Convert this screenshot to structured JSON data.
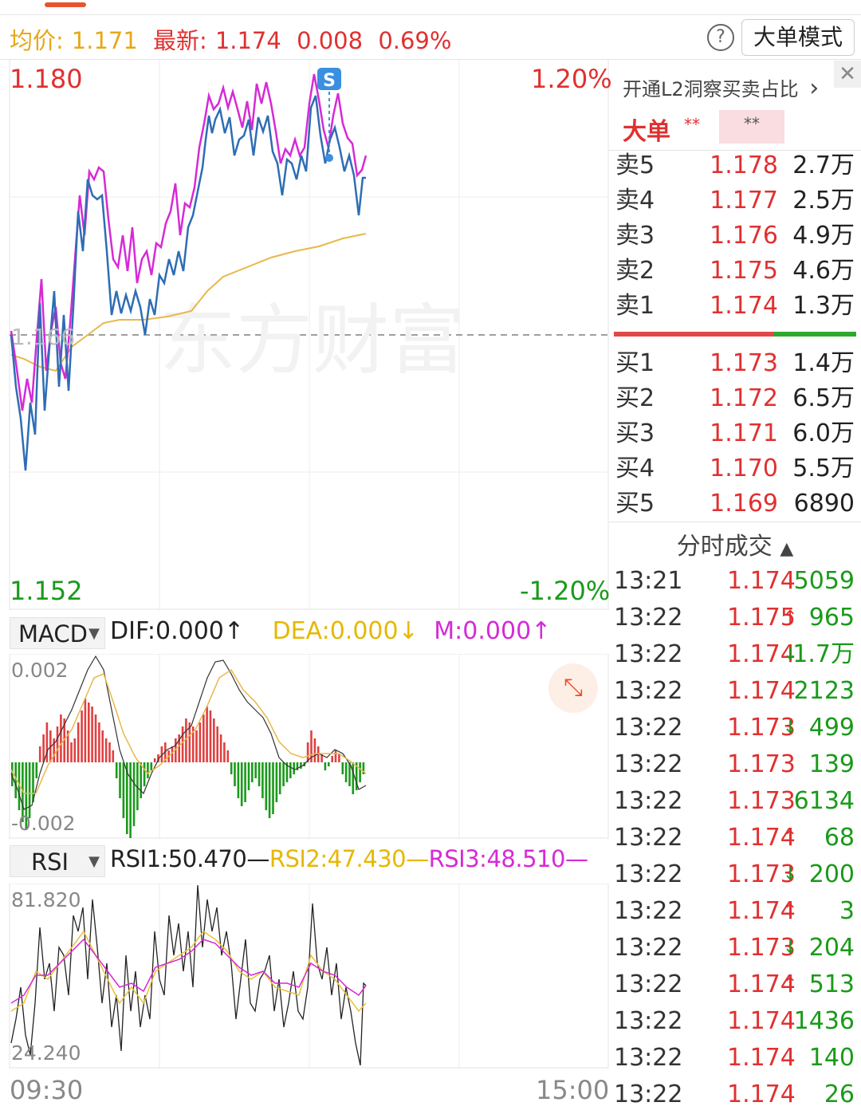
{
  "header": {
    "avg_label": "均价:",
    "avg_value": "1.171",
    "latest_label": "最新:",
    "latest_value": "1.174",
    "change": "0.008",
    "change_pct": "0.69%",
    "help_icon": "question-circle-icon",
    "mode_button": "大单模式"
  },
  "chart": {
    "price_high": "1.180",
    "price_low": "1.152",
    "pct_high": "1.20%",
    "pct_low": "-1.20%",
    "ref_price": "1.166",
    "watermark": "东方财富",
    "signal_badge": "S",
    "time_start": "09:30",
    "time_end": "15:00",
    "colors": {
      "price": "#2e6db4",
      "price2": "#d62ad6",
      "avg": "#e8b84a",
      "up": "#e03030",
      "down": "#1a9a1a"
    }
  },
  "macd": {
    "selector": "MACD",
    "dif": "DIF:0.000",
    "dif_arrow": "↑",
    "dea": "DEA:0.000",
    "dea_arrow": "↓",
    "m": "M:0.000",
    "m_arrow": "↑",
    "axis_top": "0.002",
    "axis_bottom": "-0.002",
    "expand_icon": "expand-arrows-icon"
  },
  "rsi": {
    "selector": "RSI",
    "rsi1": "RSI1:50.470",
    "rsi2": "RSI2:47.430",
    "rsi3": "RSI3:48.510",
    "dash": "—",
    "axis_top": "81.820",
    "axis_bottom": "24.240"
  },
  "panel": {
    "l2_link": "开通L2洞察买卖占比",
    "l2_chevron": "›",
    "close_icon": "close-icon",
    "big_order": "大单",
    "big_order_stars": "**",
    "big_order_box": "**",
    "sells": [
      {
        "label": "卖5",
        "price": "1.178",
        "vol": "2.7万"
      },
      {
        "label": "卖4",
        "price": "1.177",
        "vol": "2.5万"
      },
      {
        "label": "卖3",
        "price": "1.176",
        "vol": "4.9万"
      },
      {
        "label": "卖2",
        "price": "1.175",
        "vol": "4.6万"
      },
      {
        "label": "卖1",
        "price": "1.174",
        "vol": "1.3万"
      }
    ],
    "buys": [
      {
        "label": "买1",
        "price": "1.173",
        "vol": "1.4万"
      },
      {
        "label": "买2",
        "price": "1.172",
        "vol": "6.5万"
      },
      {
        "label": "买3",
        "price": "1.171",
        "vol": "6.0万"
      },
      {
        "label": "买4",
        "price": "1.170",
        "vol": "5.5万"
      },
      {
        "label": "买5",
        "price": "1.169",
        "vol": "6890"
      }
    ],
    "trades_title": "分时成交",
    "trades_title_icon": "triangle-up-icon",
    "trades": [
      {
        "time": "13:21",
        "price": "1.174",
        "arrow": "",
        "vol": "5059",
        "dir": "up"
      },
      {
        "time": "13:22",
        "price": "1.175",
        "arrow": "↑",
        "vol": "965",
        "dir": "up"
      },
      {
        "time": "13:22",
        "price": "1.174",
        "arrow": "↓",
        "vol": "1.7万",
        "dir": "dn"
      },
      {
        "time": "13:22",
        "price": "1.174",
        "arrow": "",
        "vol": "2123",
        "dir": "up"
      },
      {
        "time": "13:22",
        "price": "1.173",
        "arrow": "↓",
        "vol": "499",
        "dir": "dn"
      },
      {
        "time": "13:22",
        "price": "1.173",
        "arrow": "",
        "vol": "139",
        "dir": "dn"
      },
      {
        "time": "13:22",
        "price": "1.173",
        "arrow": "",
        "vol": "6134",
        "dir": "dn"
      },
      {
        "time": "13:22",
        "price": "1.174",
        "arrow": "↑",
        "vol": "68",
        "dir": "up"
      },
      {
        "time": "13:22",
        "price": "1.173",
        "arrow": "↓",
        "vol": "200",
        "dir": "dn"
      },
      {
        "time": "13:22",
        "price": "1.174",
        "arrow": "↑",
        "vol": "3",
        "dir": "up"
      },
      {
        "time": "13:22",
        "price": "1.173",
        "arrow": "↓",
        "vol": "204",
        "dir": "dn"
      },
      {
        "time": "13:22",
        "price": "1.174",
        "arrow": "↑",
        "vol": "513",
        "dir": "up"
      },
      {
        "time": "13:22",
        "price": "1.174",
        "arrow": "",
        "vol": "1436",
        "dir": "up"
      },
      {
        "time": "13:22",
        "price": "1.174",
        "arrow": "",
        "vol": "140",
        "dir": "up"
      },
      {
        "time": "13:22",
        "price": "1.174",
        "arrow": "",
        "vol": "26",
        "dir": "up"
      }
    ]
  }
}
